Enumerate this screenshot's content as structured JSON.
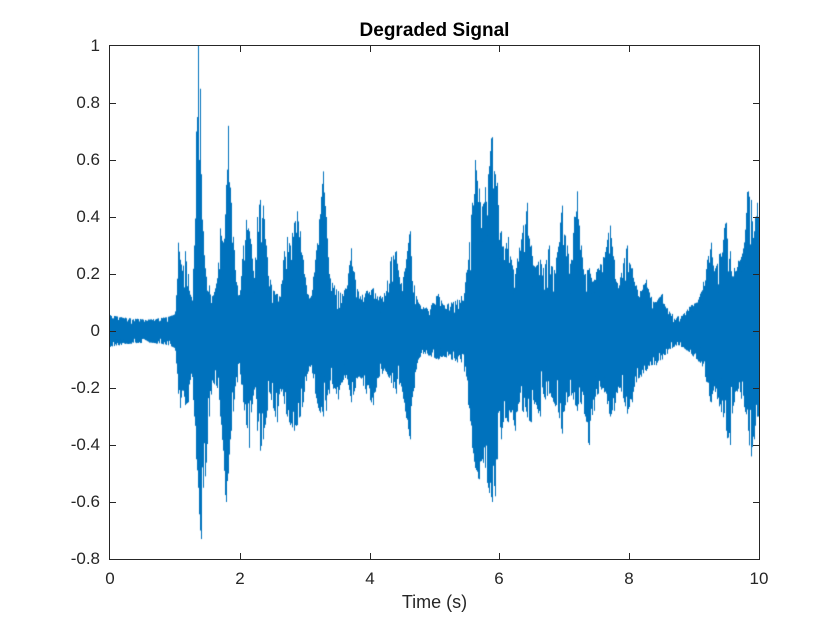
{
  "chart_data": {
    "type": "line",
    "subtype": "audio-waveform",
    "title": "Degraded Signal",
    "xlabel": "Time (s)",
    "ylabel": "",
    "xlim": [
      0,
      10
    ],
    "ylim": [
      -0.8,
      1
    ],
    "xticks": [
      0,
      2,
      4,
      6,
      8,
      10
    ],
    "xtick_labels": [
      "0",
      "2",
      "4",
      "6",
      "8",
      "10"
    ],
    "yticks": [
      -0.8,
      -0.6,
      -0.4,
      -0.2,
      0,
      0.2,
      0.4,
      0.6,
      0.8,
      1
    ],
    "ytick_labels": [
      "-0.8",
      "-0.6",
      "-0.4",
      "-0.2",
      "0",
      "0.2",
      "0.4",
      "0.6",
      "0.8",
      "1"
    ],
    "grid": false,
    "legend": null,
    "box": true,
    "tick_direction": "in",
    "colors": {
      "line": "#0072bd",
      "axis": "#262626",
      "title": "#000000",
      "background": "#ffffff"
    },
    "series": [
      {
        "name": "degraded-signal",
        "envelope": {
          "t": [
            0.0,
            0.3,
            0.6,
            0.9,
            1.0,
            1.03,
            1.05,
            1.08,
            1.12,
            1.16,
            1.2,
            1.25,
            1.3,
            1.33,
            1.36,
            1.38,
            1.4,
            1.43,
            1.47,
            1.52,
            1.58,
            1.65,
            1.7,
            1.74,
            1.78,
            1.82,
            1.86,
            1.9,
            1.95,
            2.0,
            2.05,
            2.1,
            2.14,
            2.18,
            2.22,
            2.27,
            2.31,
            2.36,
            2.41,
            2.46,
            2.52,
            2.57,
            2.62,
            2.68,
            2.72,
            2.78,
            2.83,
            2.88,
            2.93,
            2.98,
            3.04,
            3.1,
            3.16,
            3.22,
            3.28,
            3.33,
            3.38,
            3.45,
            3.52,
            3.58,
            3.65,
            3.72,
            3.78,
            3.85,
            3.95,
            4.05,
            4.15,
            4.25,
            4.33,
            4.4,
            4.48,
            4.55,
            4.62,
            4.68,
            4.75,
            4.85,
            4.95,
            5.05,
            5.15,
            5.25,
            5.35,
            5.45,
            5.52,
            5.58,
            5.63,
            5.68,
            5.73,
            5.78,
            5.83,
            5.88,
            5.93,
            5.97,
            6.02,
            6.08,
            6.13,
            6.18,
            6.24,
            6.3,
            6.36,
            6.42,
            6.48,
            6.55,
            6.62,
            6.7,
            6.77,
            6.84,
            6.9,
            6.97,
            7.04,
            7.1,
            7.16,
            7.2,
            7.26,
            7.32,
            7.38,
            7.45,
            7.52,
            7.6,
            7.66,
            7.71,
            7.77,
            7.84,
            7.9,
            7.97,
            8.04,
            8.1,
            8.18,
            8.26,
            8.34,
            8.42,
            8.5,
            8.58,
            8.66,
            8.75,
            8.85,
            8.95,
            9.05,
            9.12,
            9.2,
            9.26,
            9.32,
            9.38,
            9.44,
            9.49,
            9.55,
            9.62,
            9.7,
            9.78,
            9.83,
            9.88,
            9.93,
            9.97,
            10.0
          ],
          "upper": [
            0.055,
            0.045,
            0.04,
            0.05,
            0.06,
            0.18,
            0.31,
            0.25,
            0.22,
            0.28,
            0.2,
            0.12,
            0.3,
            0.7,
            1.0,
            0.85,
            0.55,
            0.35,
            0.22,
            0.16,
            0.12,
            0.18,
            0.36,
            0.3,
            0.45,
            0.72,
            0.45,
            0.33,
            0.16,
            0.12,
            0.3,
            0.39,
            0.35,
            0.3,
            0.18,
            0.4,
            0.46,
            0.44,
            0.3,
            0.18,
            0.14,
            0.13,
            0.12,
            0.28,
            0.33,
            0.3,
            0.38,
            0.42,
            0.35,
            0.25,
            0.13,
            0.12,
            0.25,
            0.38,
            0.56,
            0.4,
            0.2,
            0.16,
            0.14,
            0.13,
            0.16,
            0.29,
            0.18,
            0.12,
            0.14,
            0.15,
            0.12,
            0.14,
            0.26,
            0.28,
            0.16,
            0.22,
            0.35,
            0.16,
            0.1,
            0.08,
            0.09,
            0.13,
            0.09,
            0.1,
            0.11,
            0.13,
            0.25,
            0.45,
            0.6,
            0.5,
            0.42,
            0.5,
            0.55,
            0.68,
            0.55,
            0.52,
            0.35,
            0.28,
            0.33,
            0.25,
            0.2,
            0.28,
            0.35,
            0.45,
            0.3,
            0.22,
            0.25,
            0.22,
            0.3,
            0.2,
            0.28,
            0.44,
            0.3,
            0.25,
            0.4,
            0.49,
            0.3,
            0.2,
            0.22,
            0.18,
            0.22,
            0.25,
            0.32,
            0.37,
            0.25,
            0.16,
            0.22,
            0.3,
            0.22,
            0.16,
            0.14,
            0.18,
            0.12,
            0.1,
            0.13,
            0.08,
            0.06,
            0.05,
            0.06,
            0.09,
            0.1,
            0.14,
            0.25,
            0.31,
            0.22,
            0.25,
            0.32,
            0.38,
            0.28,
            0.22,
            0.25,
            0.3,
            0.49,
            0.46,
            0.35,
            0.45,
            0.4
          ],
          "lower": [
            -0.055,
            -0.045,
            -0.04,
            -0.05,
            -0.06,
            -0.15,
            -0.22,
            -0.27,
            -0.2,
            -0.26,
            -0.25,
            -0.15,
            -0.3,
            -0.45,
            -0.55,
            -0.7,
            -0.73,
            -0.55,
            -0.51,
            -0.3,
            -0.18,
            -0.2,
            -0.3,
            -0.42,
            -0.6,
            -0.5,
            -0.35,
            -0.28,
            -0.18,
            -0.14,
            -0.25,
            -0.33,
            -0.41,
            -0.28,
            -0.2,
            -0.35,
            -0.42,
            -0.38,
            -0.3,
            -0.22,
            -0.28,
            -0.32,
            -0.2,
            -0.25,
            -0.3,
            -0.33,
            -0.35,
            -0.33,
            -0.3,
            -0.25,
            -0.15,
            -0.12,
            -0.22,
            -0.28,
            -0.3,
            -0.28,
            -0.22,
            -0.2,
            -0.24,
            -0.18,
            -0.16,
            -0.25,
            -0.2,
            -0.16,
            -0.22,
            -0.26,
            -0.16,
            -0.14,
            -0.18,
            -0.22,
            -0.18,
            -0.28,
            -0.38,
            -0.2,
            -0.1,
            -0.08,
            -0.09,
            -0.1,
            -0.09,
            -0.1,
            -0.11,
            -0.12,
            -0.25,
            -0.4,
            -0.48,
            -0.52,
            -0.45,
            -0.48,
            -0.55,
            -0.6,
            -0.58,
            -0.45,
            -0.38,
            -0.3,
            -0.32,
            -0.28,
            -0.35,
            -0.25,
            -0.28,
            -0.3,
            -0.32,
            -0.25,
            -0.3,
            -0.24,
            -0.22,
            -0.25,
            -0.28,
            -0.36,
            -0.25,
            -0.22,
            -0.25,
            -0.28,
            -0.25,
            -0.3,
            -0.4,
            -0.28,
            -0.22,
            -0.2,
            -0.25,
            -0.3,
            -0.28,
            -0.2,
            -0.22,
            -0.29,
            -0.25,
            -0.18,
            -0.16,
            -0.14,
            -0.12,
            -0.12,
            -0.1,
            -0.08,
            -0.06,
            -0.05,
            -0.06,
            -0.08,
            -0.1,
            -0.12,
            -0.18,
            -0.25,
            -0.2,
            -0.25,
            -0.3,
            -0.35,
            -0.4,
            -0.25,
            -0.2,
            -0.28,
            -0.35,
            -0.44,
            -0.38,
            -0.3,
            -0.3
          ]
        }
      }
    ]
  }
}
